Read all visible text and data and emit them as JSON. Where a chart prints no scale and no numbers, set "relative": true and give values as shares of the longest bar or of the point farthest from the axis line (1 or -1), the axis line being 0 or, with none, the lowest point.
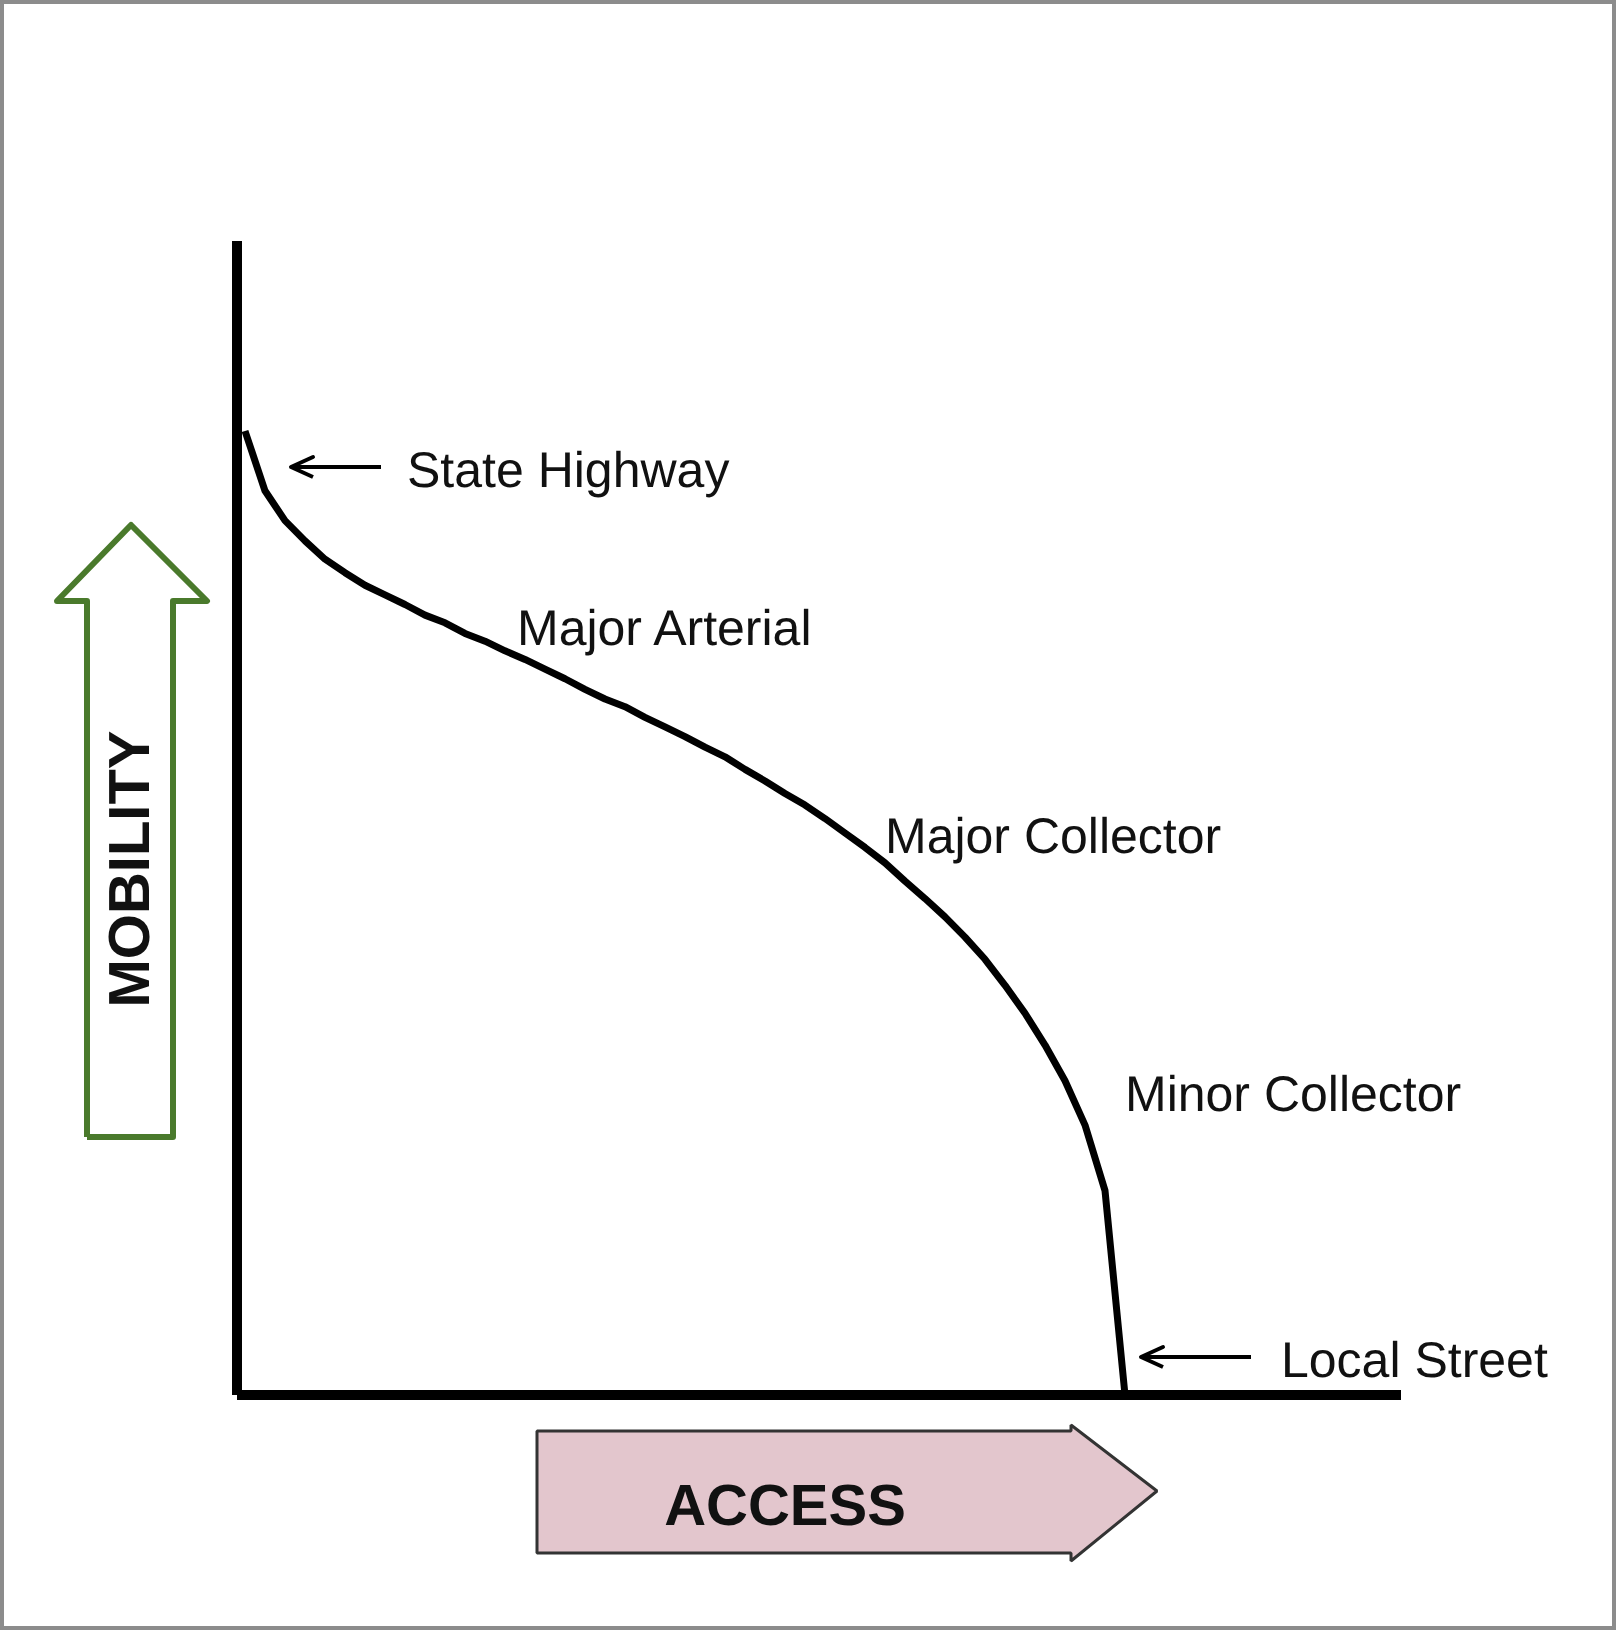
{
  "chart_data": {
    "type": "line",
    "relative": true,
    "xlabel": "ACCESS",
    "ylabel": "MOBILITY",
    "categories": [
      null,
      null,
      null,
      null,
      null,
      null,
      null,
      null,
      null,
      null,
      null,
      null,
      null,
      null,
      null,
      null,
      null,
      null,
      null,
      null,
      null,
      null,
      null,
      null,
      null,
      null,
      null,
      null,
      null,
      null,
      null,
      null,
      null,
      null,
      null,
      null,
      null,
      null,
      null,
      null,
      null,
      null,
      null,
      null,
      null,
      null,
      null,
      null,
      null,
      null,
      null,
      null,
      null,
      null,
      null,
      null,
      null,
      null,
      null
    ],
    "series": [
      {
        "color": "#000000",
        "values": [
          1.0,
          0.938,
          0.907,
          0.886,
          0.867,
          0.853,
          0.84,
          0.83,
          0.82,
          0.809,
          0.801,
          0.79,
          0.782,
          0.772,
          0.763,
          0.753,
          0.743,
          0.732,
          0.722,
          0.714,
          0.703,
          0.693,
          0.683,
          0.672,
          0.662,
          0.649,
          0.637,
          0.624,
          0.612,
          0.598,
          0.583,
          0.568,
          0.552,
          0.533,
          0.515,
          0.496,
          0.475,
          0.452,
          0.425,
          0.396,
          0.363,
          0.326,
          0.28,
          0.212,
          0.0,
          null,
          null,
          null,
          null,
          null,
          null,
          null,
          null,
          null,
          null,
          null,
          null,
          null,
          null
        ]
      }
    ],
    "annotations": [
      "State Highway",
      "Major Arterial",
      "Major Collector",
      "Minor Collector",
      "Local Street"
    ]
  }
}
